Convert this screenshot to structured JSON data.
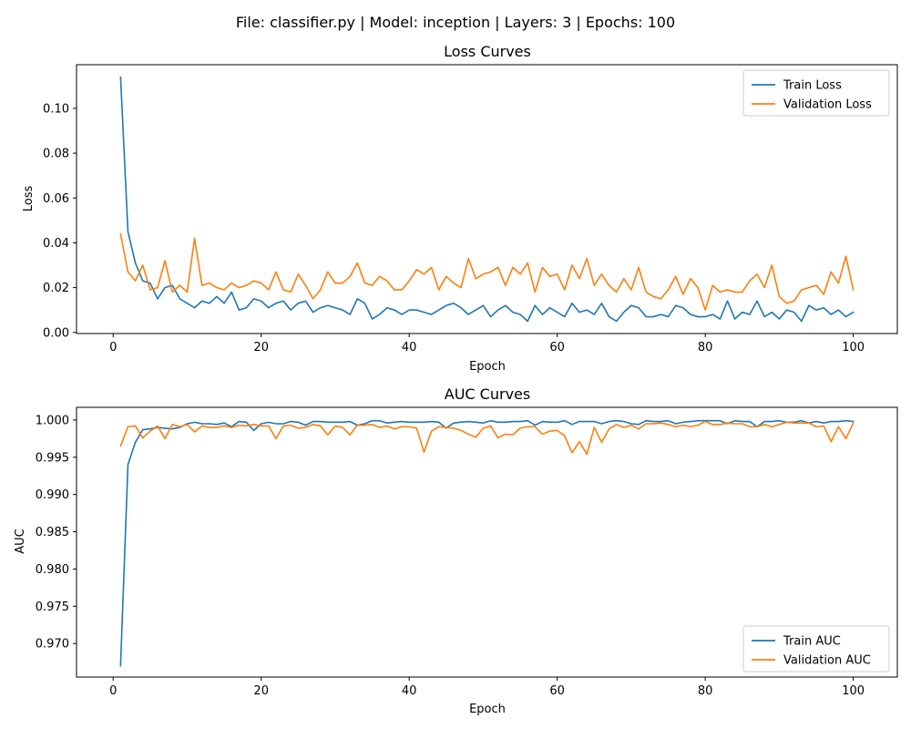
{
  "figure": {
    "suptitle": "File: classifier.py | Model: inception | Layers: 3 | Epochs: 100"
  },
  "colors": {
    "train": "#1f77b4",
    "validation": "#ff7f0e"
  },
  "chart_data": [
    {
      "type": "line",
      "title": "Loss Curves",
      "xlabel": "Epoch",
      "ylabel": "Loss",
      "xlim": [
        -4.95,
        105.95
      ],
      "ylim": [
        -0.0005,
        0.1195
      ],
      "xticks": [
        0,
        20,
        40,
        60,
        80,
        100
      ],
      "yticks": [
        0.0,
        0.02,
        0.04,
        0.06,
        0.08,
        0.1
      ],
      "ytick_labels": [
        "0.00",
        "0.02",
        "0.04",
        "0.06",
        "0.08",
        "0.10"
      ],
      "grid": false,
      "legend": "top-right",
      "series": [
        {
          "name": "Train Loss",
          "values": [
            0.114,
            0.045,
            0.031,
            0.023,
            0.022,
            0.015,
            0.02,
            0.021,
            0.015,
            0.013,
            0.011,
            0.014,
            0.013,
            0.016,
            0.013,
            0.018,
            0.01,
            0.011,
            0.015,
            0.014,
            0.011,
            0.013,
            0.014,
            0.01,
            0.013,
            0.014,
            0.009,
            0.011,
            0.012,
            0.011,
            0.01,
            0.008,
            0.015,
            0.013,
            0.006,
            0.008,
            0.011,
            0.01,
            0.008,
            0.01,
            0.01,
            0.009,
            0.008,
            0.01,
            0.012,
            0.013,
            0.011,
            0.008,
            0.01,
            0.012,
            0.007,
            0.01,
            0.012,
            0.009,
            0.008,
            0.005,
            0.012,
            0.008,
            0.011,
            0.009,
            0.007,
            0.013,
            0.009,
            0.01,
            0.008,
            0.013,
            0.007,
            0.005,
            0.009,
            0.012,
            0.011,
            0.007,
            0.007,
            0.008,
            0.007,
            0.012,
            0.011,
            0.008,
            0.007,
            0.007,
            0.008,
            0.006,
            0.014,
            0.006,
            0.009,
            0.008,
            0.014,
            0.007,
            0.009,
            0.006,
            0.01,
            0.009,
            0.005,
            0.012,
            0.01,
            0.011,
            0.008,
            0.01,
            0.007,
            0.009
          ]
        },
        {
          "name": "Validation Loss",
          "values": [
            0.044,
            0.027,
            0.023,
            0.03,
            0.019,
            0.02,
            0.032,
            0.018,
            0.021,
            0.018,
            0.042,
            0.021,
            0.022,
            0.02,
            0.019,
            0.022,
            0.02,
            0.021,
            0.023,
            0.022,
            0.019,
            0.027,
            0.019,
            0.018,
            0.026,
            0.021,
            0.015,
            0.019,
            0.027,
            0.022,
            0.022,
            0.025,
            0.031,
            0.022,
            0.021,
            0.025,
            0.023,
            0.019,
            0.019,
            0.023,
            0.028,
            0.026,
            0.029,
            0.019,
            0.025,
            0.022,
            0.02,
            0.033,
            0.024,
            0.026,
            0.027,
            0.029,
            0.021,
            0.029,
            0.026,
            0.031,
            0.018,
            0.029,
            0.025,
            0.026,
            0.019,
            0.03,
            0.024,
            0.033,
            0.021,
            0.026,
            0.021,
            0.018,
            0.024,
            0.019,
            0.029,
            0.018,
            0.016,
            0.015,
            0.019,
            0.025,
            0.017,
            0.024,
            0.02,
            0.01,
            0.021,
            0.018,
            0.019,
            0.018,
            0.018,
            0.023,
            0.026,
            0.02,
            0.03,
            0.016,
            0.013,
            0.014,
            0.019,
            0.02,
            0.021,
            0.017,
            0.027,
            0.022,
            0.034,
            0.019
          ]
        }
      ]
    },
    {
      "type": "line",
      "title": "AUC Curves",
      "xlabel": "Epoch",
      "ylabel": "AUC",
      "xlim": [
        -4.95,
        105.95
      ],
      "ylim": [
        0.9655,
        1.0017
      ],
      "xticks": [
        0,
        20,
        40,
        60,
        80,
        100
      ],
      "yticks": [
        0.97,
        0.975,
        0.98,
        0.985,
        0.99,
        0.995,
        1.0
      ],
      "ytick_labels": [
        "0.970",
        "0.975",
        "0.980",
        "0.985",
        "0.990",
        "0.995",
        "1.000"
      ],
      "grid": false,
      "legend": "bottom-right",
      "series": [
        {
          "name": "Train AUC",
          "values": [
            0.967,
            0.994,
            0.997,
            0.9987,
            0.9988,
            0.999,
            0.9989,
            0.9988,
            0.999,
            0.9995,
            0.9997,
            0.9995,
            0.9995,
            0.9994,
            0.9996,
            0.9991,
            0.9998,
            0.9997,
            0.9986,
            0.9995,
            0.9997,
            0.9995,
            0.9995,
            0.9998,
            0.9997,
            0.9993,
            0.9998,
            0.9998,
            0.9997,
            0.9997,
            0.9997,
            0.9998,
            0.9993,
            0.9995,
            0.9999,
            0.9999,
            0.9996,
            0.9997,
            0.9998,
            0.9997,
            0.9997,
            0.9997,
            0.9998,
            0.9997,
            0.9989,
            0.9996,
            0.9997,
            0.9998,
            0.9997,
            0.9996,
            0.9999,
            0.9997,
            0.9997,
            0.9998,
            0.9998,
            0.9999,
            0.9993,
            0.9998,
            0.9997,
            0.9997,
            0.9999,
            0.9994,
            0.9998,
            0.9998,
            0.9998,
            0.9995,
            0.9998,
            0.9999,
            0.9998,
            0.9995,
            0.9994,
            0.9999,
            0.9998,
            0.9998,
            0.9999,
            0.9995,
            0.9997,
            0.9998,
            0.9999,
            0.9999,
            0.9999,
            0.9999,
            0.9995,
            0.9999,
            0.9998,
            0.9998,
            0.9991,
            0.9998,
            0.9998,
            0.9999,
            0.9997,
            0.9997,
            0.9999,
            0.9996,
            0.9998,
            0.9996,
            0.9998,
            0.9998,
            0.9999,
            0.9998
          ]
        },
        {
          "name": "Validation AUC",
          "values": [
            0.9965,
            0.9991,
            0.9992,
            0.9976,
            0.9985,
            0.9992,
            0.9975,
            0.9994,
            0.9991,
            0.9994,
            0.9984,
            0.9992,
            0.999,
            0.999,
            0.9992,
            0.999,
            0.9993,
            0.9992,
            0.9994,
            0.9992,
            0.9992,
            0.9975,
            0.9992,
            0.9993,
            0.9989,
            0.999,
            0.9994,
            0.9992,
            0.998,
            0.9992,
            0.999,
            0.998,
            0.9993,
            0.9993,
            0.9994,
            0.999,
            0.9992,
            0.9988,
            0.9991,
            0.9991,
            0.9989,
            0.9957,
            0.9985,
            0.9991,
            0.999,
            0.9989,
            0.9986,
            0.9981,
            0.9977,
            0.9989,
            0.9992,
            0.9976,
            0.9981,
            0.998,
            0.9989,
            0.9991,
            0.9991,
            0.9981,
            0.9985,
            0.9986,
            0.9979,
            0.9956,
            0.9971,
            0.9954,
            0.999,
            0.997,
            0.9988,
            0.9994,
            0.999,
            0.9993,
            0.9988,
            0.9995,
            0.9995,
            0.9996,
            0.9994,
            0.9991,
            0.9993,
            0.9991,
            0.9993,
            0.9998,
            0.9994,
            0.9994,
            0.9996,
            0.9995,
            0.9995,
            0.9991,
            0.9991,
            0.9994,
            0.9991,
            0.9994,
            0.9997,
            0.9996,
            0.9996,
            0.9996,
            0.9991,
            0.9992,
            0.9971,
            0.9991,
            0.9975,
            0.9996
          ]
        }
      ]
    }
  ]
}
